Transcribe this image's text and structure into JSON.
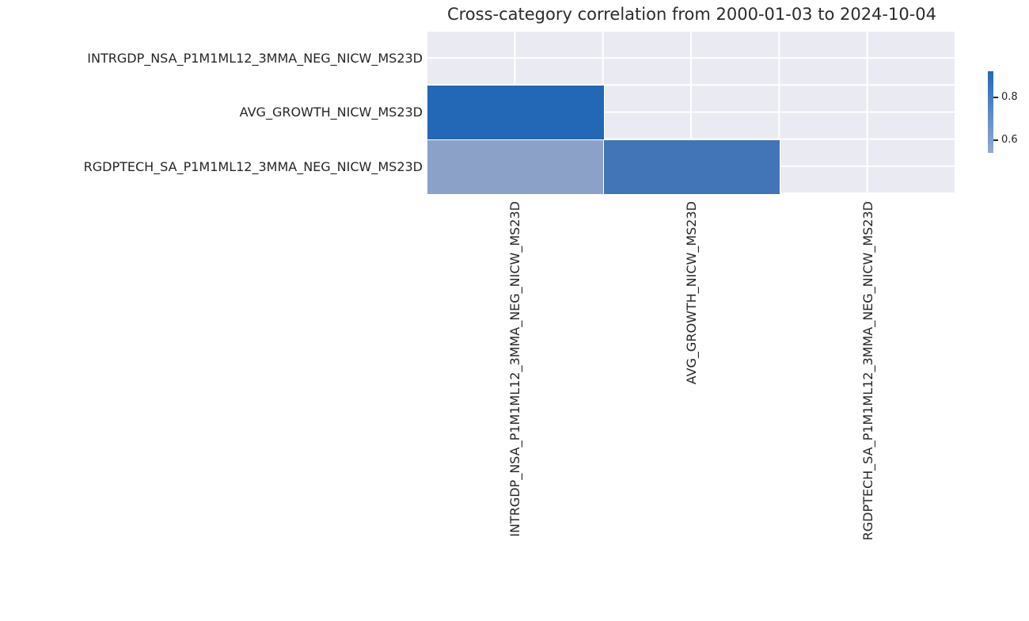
{
  "chart_data": {
    "type": "heatmap",
    "title": "Cross-category correlation from 2000-01-03 to 2024-10-04",
    "categories": [
      "INTRGDP_NSA_P1M1ML12_3MMA_NEG_NICW_MS23D",
      "AVG_GROWTH_NICW_MS23D",
      "RGDPTECH_SA_P1M1ML12_3MMA_NEG_NICW_MS23D"
    ],
    "matrix": [
      [
        null,
        null,
        null
      ],
      [
        0.92,
        null,
        null
      ],
      [
        0.55,
        0.8,
        null
      ]
    ],
    "mask": "upper-triangle-and-diagonal-hidden",
    "cells": [
      {
        "row": 1,
        "col": 0,
        "value": 0.92,
        "color": "#2368b6"
      },
      {
        "row": 2,
        "col": 0,
        "value": 0.55,
        "color": "#8ba1c8"
      },
      {
        "row": 2,
        "col": 1,
        "value": 0.8,
        "color": "#4274b8"
      }
    ],
    "colorbar": {
      "vmin": 0.54,
      "vmax": 0.92,
      "ticks": [
        {
          "value": 0.8,
          "label": "0.8"
        },
        {
          "value": 0.6,
          "label": "0.6"
        }
      ],
      "top_color": "#2368b6",
      "bottom_color": "#94abd0"
    },
    "layout": {
      "grid": "on",
      "legend_position": "colorbar-right",
      "masked_bg_color": "#eaeaf2",
      "grid_color": "#ffffff",
      "text_color": "#262626"
    }
  }
}
